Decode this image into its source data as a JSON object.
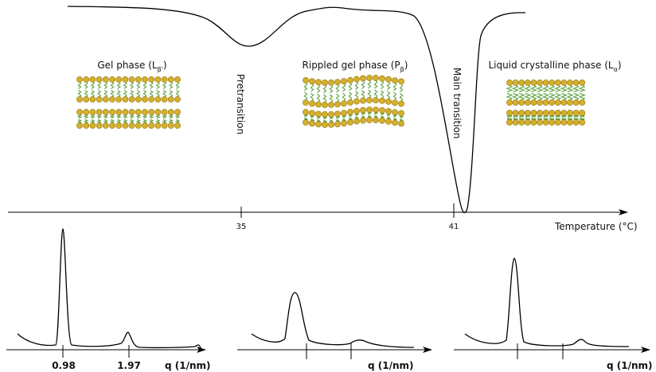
{
  "phases": [
    {
      "label": "Gel phase (L",
      "subscript": "β'",
      "close": ")"
    },
    {
      "label": "Rippled gel phase (P",
      "subscript": "β",
      "close": ")"
    },
    {
      "label": "Liquid crystalline phase (L",
      "subscript": "α",
      "close": ")"
    }
  ],
  "transitions": [
    "Pretransition",
    "Main transition"
  ],
  "temperature_axis": {
    "ticks": [
      "35",
      "41"
    ],
    "label": "Temperature (°C)"
  },
  "scattering": [
    {
      "ticks": [
        "0.98",
        "1.97"
      ],
      "axis_label": "q (1/nm)"
    },
    {
      "axis_label": "q (1/nm)"
    },
    {
      "axis_label": "q (1/nm)"
    }
  ]
}
